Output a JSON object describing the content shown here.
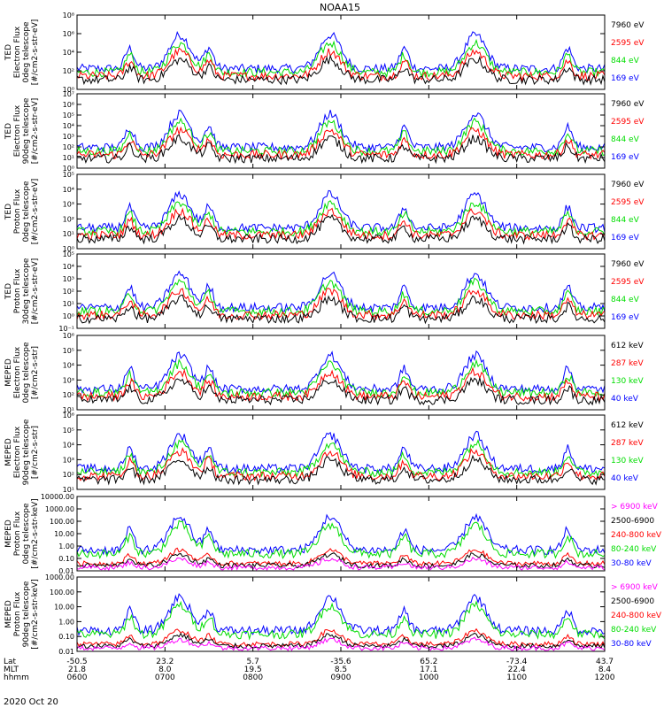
{
  "title": "NOAA15",
  "date_label": "2020 Oct 20",
  "chart_data": {
    "type": "line",
    "title": "NOAA15",
    "x_ticks": {
      "labels": [
        "0600",
        "0700",
        "0800",
        "0900",
        "1000",
        "1100",
        "1200"
      ],
      "rows": [
        {
          "name": "Lat",
          "values": [
            "-50.5",
            "23.2",
            "5.7",
            "-35.6",
            "65.2",
            "-73.4",
            "43.7"
          ]
        },
        {
          "name": "MLT",
          "values": [
            "21.8",
            "8.0",
            "19.5",
            "8.5",
            "17.1",
            "22.4",
            "8.4"
          ]
        },
        {
          "name": "hhmm",
          "values": [
            "0600",
            "0700",
            "0800",
            "0900",
            "1000",
            "1100",
            "1200"
          ]
        }
      ]
    },
    "panels": [
      {
        "ylabel": [
          "TED",
          "Electron Flux",
          "0deg telescope",
          "[#/cm2-s-str-eV]"
        ],
        "log": true,
        "yticks": [
          "10⁰",
          "10²",
          "10⁴",
          "10⁶",
          "10⁸"
        ],
        "ylim_exp": [
          0,
          8
        ],
        "legend": [
          {
            "label": "7960 eV",
            "color": "#000000"
          },
          {
            "label": "2595 eV",
            "color": "#ff0000"
          },
          {
            "label": "844 eV",
            "color": "#00dd00"
          },
          {
            "label": "169 eV",
            "color": "#0000ff"
          }
        ]
      },
      {
        "ylabel": [
          "TED",
          "Electron Flux",
          "90deg telescope",
          "[#/cm2-s-str-eV]"
        ],
        "log": true,
        "yticks": [
          "10⁰",
          "10¹",
          "10²",
          "10³",
          "10⁴",
          "10⁵",
          "10⁶",
          "10⁷"
        ],
        "ylim_exp": [
          0,
          7
        ],
        "legend": [
          {
            "label": "7960 eV",
            "color": "#000000"
          },
          {
            "label": "2595 eV",
            "color": "#ff0000"
          },
          {
            "label": "844 eV",
            "color": "#00dd00"
          },
          {
            "label": "169 eV",
            "color": "#0000ff"
          }
        ]
      },
      {
        "ylabel": [
          "TED",
          "Proton Flux",
          "0deg telescope",
          "[#/cm2-s-str-eV]"
        ],
        "log": true,
        "yticks": [
          "10⁰",
          "10¹",
          "10²",
          "10³",
          "10⁴",
          "10⁵"
        ],
        "ylim_exp": [
          0,
          5
        ],
        "legend": [
          {
            "label": "7960 eV",
            "color": "#000000"
          },
          {
            "label": "2595 eV",
            "color": "#ff0000"
          },
          {
            "label": "844 eV",
            "color": "#00dd00"
          },
          {
            "label": "169 eV",
            "color": "#0000ff"
          }
        ]
      },
      {
        "ylabel": [
          "TED",
          "Proton Flux",
          "30deg telescope",
          "[#/cm2-s-str-eV]"
        ],
        "log": true,
        "yticks": [
          "10⁻¹",
          "10⁰",
          "10¹",
          "10²",
          "10³",
          "10⁴",
          "10⁵"
        ],
        "ylim_exp": [
          -1,
          5
        ],
        "legend": [
          {
            "label": "7960 eV",
            "color": "#000000"
          },
          {
            "label": "2595 eV",
            "color": "#ff0000"
          },
          {
            "label": "844 eV",
            "color": "#00dd00"
          },
          {
            "label": "169 eV",
            "color": "#0000ff"
          }
        ]
      },
      {
        "ylabel": [
          "MEPED",
          "Electron Flux",
          "0deg telescope",
          "[#/cm2-s-str]"
        ],
        "log": true,
        "yticks": [
          "10¹",
          "10²",
          "10³",
          "10⁴",
          "10⁵",
          "10⁶"
        ],
        "ylim_exp": [
          1,
          6
        ],
        "legend": [
          {
            "label": "612 keV",
            "color": "#000000"
          },
          {
            "label": "287 keV",
            "color": "#ff0000"
          },
          {
            "label": "130 keV",
            "color": "#00dd00"
          },
          {
            "label": "40 keV",
            "color": "#0000ff"
          }
        ]
      },
      {
        "ylabel": [
          "MEPED",
          "Electron Flux",
          "90deg telescope",
          "[#/cm2-s-str]"
        ],
        "log": true,
        "yticks": [
          "10¹",
          "10²",
          "10³",
          "10⁴",
          "10⁵",
          "10⁶"
        ],
        "ylim_exp": [
          1,
          6
        ],
        "legend": [
          {
            "label": "612 keV",
            "color": "#000000"
          },
          {
            "label": "287 keV",
            "color": "#ff0000"
          },
          {
            "label": "130 keV",
            "color": "#00dd00"
          },
          {
            "label": "40 keV",
            "color": "#0000ff"
          }
        ]
      },
      {
        "ylabel": [
          "MEPED",
          "Proton Flux",
          "0deg telescope",
          "[#/cm2-s-str-keV]"
        ],
        "log": true,
        "yticks": [
          "0.01",
          "0.10",
          "1.00",
          "10.00",
          "100.00",
          "1000.00",
          "10000.00"
        ],
        "ylim_exp": [
          -2,
          4
        ],
        "legend": [
          {
            "label": "> 6900 keV",
            "color": "#ff00ff"
          },
          {
            "label": "2500-6900",
            "color": "#000000"
          },
          {
            "label": "240-800 keV",
            "color": "#ff0000"
          },
          {
            "label": "80-240 keV",
            "color": "#00dd00"
          },
          {
            "label": "30-80 keV",
            "color": "#0000ff"
          }
        ]
      },
      {
        "ylabel": [
          "MEPED",
          "Proton Flux",
          "90deg telescope",
          "[#/cm2-s-str-keV]"
        ],
        "log": true,
        "yticks": [
          "0.01",
          "0.10",
          "1.00",
          "10.00",
          "100.00",
          "1000.00"
        ],
        "ylim_exp": [
          -2,
          3
        ],
        "legend": [
          {
            "label": "> 6900 keV",
            "color": "#ff00ff"
          },
          {
            "label": "2500-6900",
            "color": "#000000"
          },
          {
            "label": "240-800 keV",
            "color": "#ff0000"
          },
          {
            "label": "80-240 keV",
            "color": "#00dd00"
          },
          {
            "label": "30-80 keV",
            "color": "#0000ff"
          }
        ]
      }
    ]
  }
}
